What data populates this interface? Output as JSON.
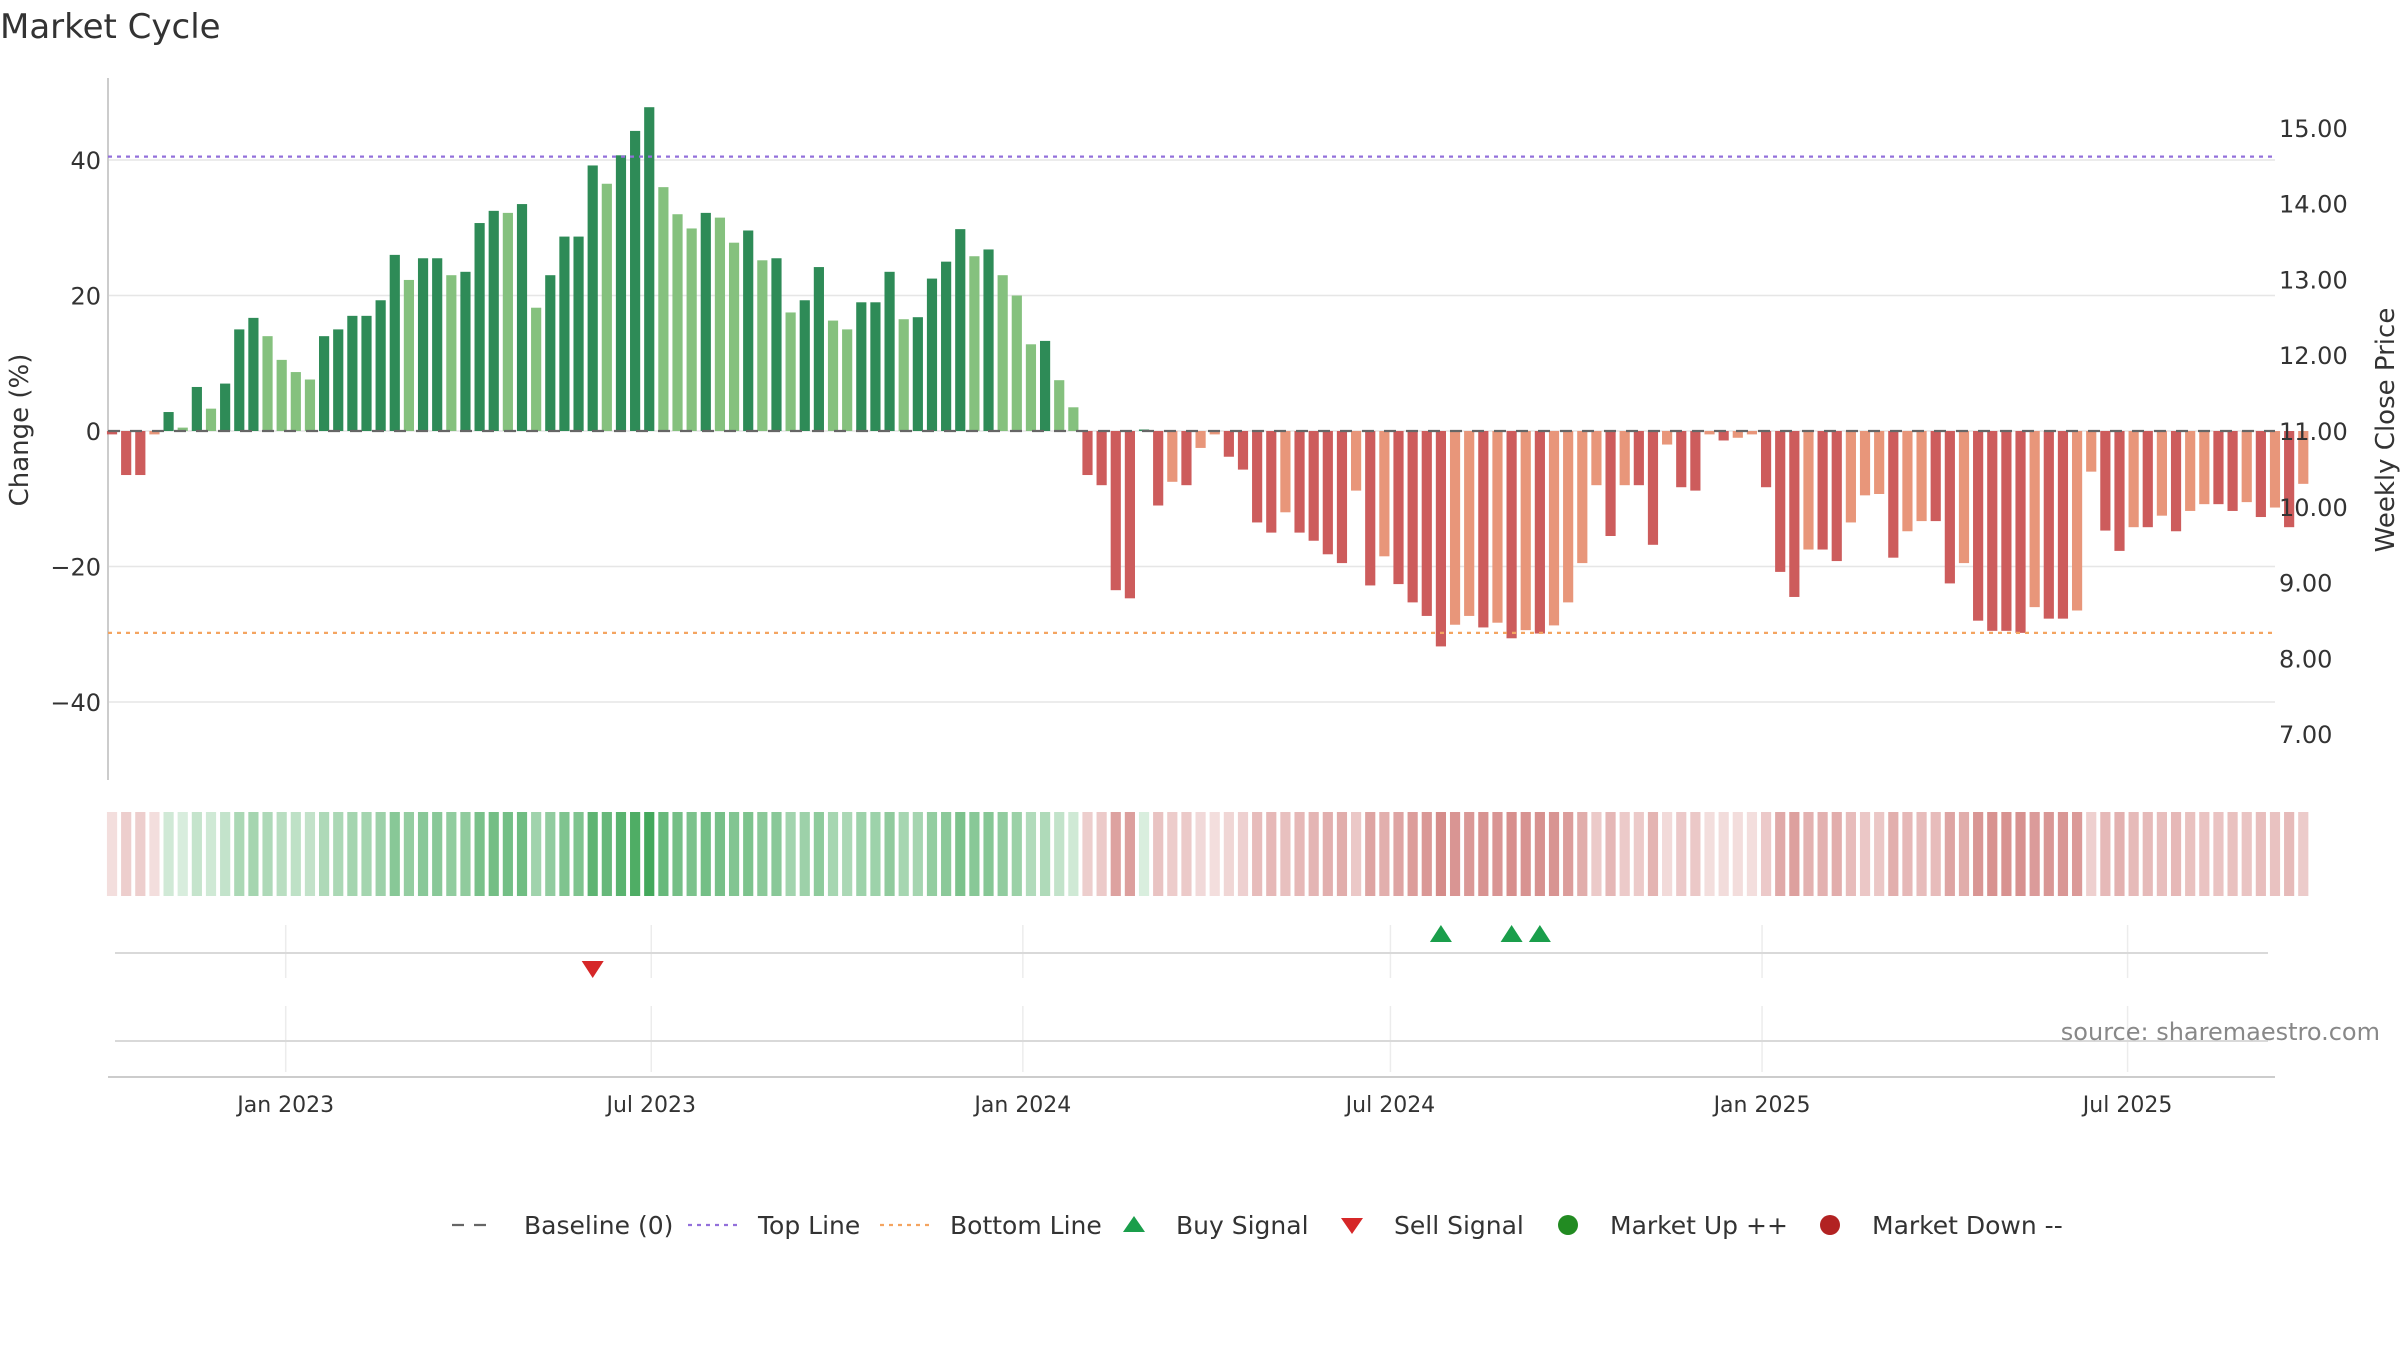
{
  "chart_data": {
    "type": "bar",
    "title": "Market Cycle",
    "ylabel": "Change (%)",
    "y2label": "Weekly Close Price",
    "ylim": [
      -52,
      52
    ],
    "y2lim": [
      6.58,
      15.89
    ],
    "yticks": [
      40,
      20,
      0,
      -20,
      -40
    ],
    "ytick_labels": [
      "40",
      "20",
      "0",
      "−20",
      "−40"
    ],
    "y2ticks": [
      15,
      14,
      13,
      12,
      11,
      10,
      9,
      8,
      7
    ],
    "y2tick_labels": [
      "15.00",
      "14.00",
      "13.00",
      "12.00",
      "11.00",
      "10.00",
      "9.00",
      "8.00",
      "7.00"
    ],
    "xlim": [
      "2022-10-05",
      "2025-09-12"
    ],
    "xticks": [
      "2023-01-01",
      "2023-07-01",
      "2024-01-01",
      "2024-07-01",
      "2025-01-01",
      "2025-07-01"
    ],
    "xtick_labels": [
      "Jan 2023",
      "Jul 2023",
      "Jan 2024",
      "Jul 2024",
      "Jan 2025",
      "Jul 2025"
    ],
    "grid": true,
    "first_week": "2022-10-07",
    "week_step_days": 7,
    "values": [
      -0.5,
      -6.5,
      -6.5,
      -0.5,
      2.8,
      0.5,
      6.5,
      3.3,
      7.0,
      15.0,
      16.7,
      14.0,
      10.5,
      8.7,
      7.6,
      14.0,
      15.0,
      17.0,
      17.0,
      19.3,
      26.0,
      22.3,
      25.5,
      25.5,
      23.0,
      23.5,
      30.7,
      32.5,
      32.2,
      33.5,
      18.2,
      23.0,
      28.7,
      28.7,
      39.2,
      36.5,
      40.7,
      44.3,
      47.8,
      36.0,
      32.0,
      29.9,
      32.2,
      31.5,
      27.8,
      29.6,
      25.2,
      25.5,
      17.5,
      19.3,
      24.2,
      16.3,
      15.0,
      19.0,
      19.0,
      23.5,
      16.5,
      16.8,
      22.5,
      25.0,
      29.8,
      25.8,
      26.8,
      23.0,
      20.0,
      12.8,
      13.3,
      7.5,
      3.5,
      -6.5,
      -8.0,
      -23.5,
      -24.7,
      0,
      -11.0,
      -7.5,
      -8.0,
      -2.5,
      -0.5,
      -3.8,
      -5.7,
      -13.5,
      -15.0,
      -12.0,
      -15.0,
      -16.2,
      -18.2,
      -19.5,
      -8.8,
      -22.8,
      -18.5,
      -22.6,
      -25.3,
      -27.3,
      -31.8,
      -28.6,
      -27.3,
      -29.0,
      -28.3,
      -30.6,
      -29.4,
      -29.9,
      -28.7,
      -25.3,
      -19.5,
      -8.0,
      -15.5,
      -8.0,
      -8.0,
      -16.8,
      -2.0,
      -8.3,
      -8.8,
      -0.5,
      -1.4,
      -1.0,
      -0.5,
      -8.3,
      -20.8,
      -24.5,
      -17.5,
      -17.5,
      -19.2,
      -13.5,
      -9.5,
      -9.3,
      -18.7,
      -14.8,
      -13.3,
      -13.3,
      -22.5,
      -19.5,
      -28.0,
      -29.5,
      -29.5,
      -29.8,
      -26.0,
      -27.7,
      -27.7,
      -26.5,
      -6.0,
      -14.7,
      -17.7,
      -14.2,
      -14.2,
      -12.5,
      -14.8,
      -11.8,
      -10.8,
      -10.8,
      -11.8,
      -10.5,
      -12.7,
      -11.3,
      -14.2,
      -7.8
    ],
    "bar_colors": {
      "up_strong": "#2e8b57",
      "up_weak": "#85c17e",
      "down_strong": "#cd5c5c",
      "down_weak": "#e8967a"
    },
    "reference_lines": [
      {
        "name": "Baseline (0)",
        "value": 0,
        "color": "#666666",
        "style": "dash"
      },
      {
        "name": "Top Line",
        "value": 40.5,
        "color": "#9370db",
        "style": "dot"
      },
      {
        "name": "Bottom Line",
        "value": -29.8,
        "color": "#f4a460",
        "style": "dot"
      }
    ],
    "heat_colors": {
      "up": "#2e9e48",
      "down": "#c0504d"
    },
    "signals": [
      {
        "type": "sell",
        "date": "2023-06-02"
      },
      {
        "type": "buy",
        "date": "2024-07-26"
      },
      {
        "type": "buy",
        "date": "2024-08-30"
      },
      {
        "type": "buy",
        "date": "2024-09-13"
      }
    ],
    "signal_colors": {
      "buy": "#1a9e4b",
      "sell": "#d62728"
    },
    "legend": [
      {
        "label": "Baseline (0)",
        "kind": "dash",
        "color": "#666666"
      },
      {
        "label": "Top Line",
        "kind": "dot",
        "color": "#9370db"
      },
      {
        "label": "Bottom Line",
        "kind": "dot",
        "color": "#f4a460"
      },
      {
        "label": "Buy Signal",
        "kind": "up-triangle",
        "color": "#1a9e4b"
      },
      {
        "label": "Sell Signal",
        "kind": "down-triangle",
        "color": "#d62728"
      },
      {
        "label": "Market Up ++",
        "kind": "circle",
        "color": "#228b22"
      },
      {
        "label": "Market Down --",
        "kind": "circle",
        "color": "#b22222"
      }
    ],
    "legend_position": "bottom-center",
    "source": "source: sharemaestro.com"
  }
}
